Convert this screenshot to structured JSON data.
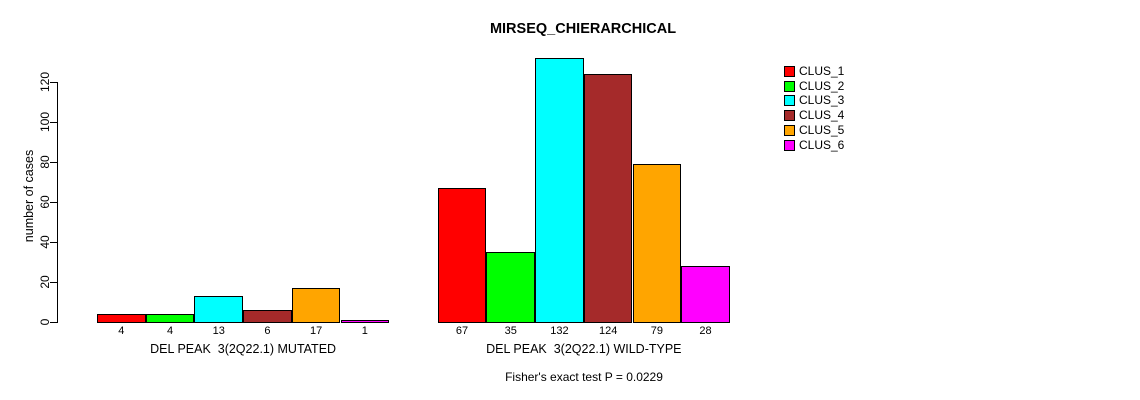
{
  "chart_data": {
    "type": "bar",
    "title": "MIRSEQ_CHIERARCHICAL",
    "ylabel": "number of cases",
    "xlabel": "",
    "ylim": [
      0,
      135
    ],
    "yticks": [
      0,
      20,
      40,
      60,
      80,
      100,
      120
    ],
    "grid": false,
    "legend_position": "top-right",
    "series_names": [
      "CLUS_1",
      "CLUS_2",
      "CLUS_3",
      "CLUS_4",
      "CLUS_5",
      "CLUS_6"
    ],
    "colors": [
      "#FF0000",
      "#00FF00",
      "#00FFFF",
      "#A52A2A",
      "#FFA500",
      "#FF00FF"
    ],
    "groups": [
      {
        "label": "DEL PEAK  3(2Q22.1) MUTATED",
        "values": [
          4,
          4,
          13,
          6,
          17,
          1
        ]
      },
      {
        "label": "DEL PEAK  3(2Q22.1) WILD-TYPE",
        "values": [
          67,
          35,
          132,
          124,
          79,
          28
        ]
      }
    ],
    "annotation": "Fisher's exact test P = 0.0229"
  }
}
